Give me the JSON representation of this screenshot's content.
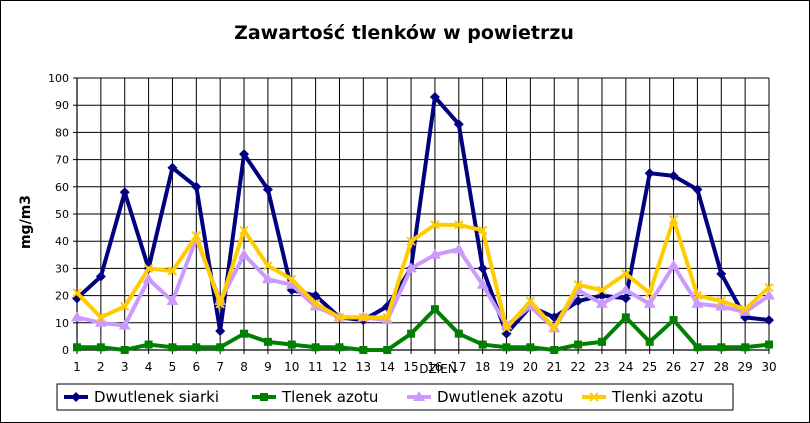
{
  "chart_data": {
    "type": "line",
    "title": "Zawartość tlenków w powietrzu",
    "xlabel": "DZIEŃ",
    "ylabel": "mg/m3",
    "ylim": [
      0,
      100
    ],
    "ytick_step": 10,
    "grid": true,
    "legend_position": "bottom",
    "categories": [
      1,
      2,
      3,
      4,
      5,
      6,
      7,
      8,
      9,
      10,
      11,
      12,
      13,
      14,
      15,
      16,
      17,
      18,
      19,
      20,
      21,
      22,
      23,
      24,
      25,
      26,
      27,
      28,
      29,
      30
    ],
    "series": [
      {
        "name": "Dwutlenek siarki",
        "color": "#000080",
        "marker": "diamond",
        "values": [
          19,
          27,
          58,
          30,
          67,
          60,
          7,
          72,
          59,
          22,
          20,
          12,
          11,
          16,
          30,
          93,
          83,
          30,
          6,
          16,
          12,
          18,
          20,
          19,
          65,
          64,
          59,
          28,
          12,
          11
        ]
      },
      {
        "name": "Tlenek azotu",
        "color": "#008000",
        "marker": "square",
        "values": [
          1,
          1,
          0,
          2,
          1,
          1,
          1,
          6,
          3,
          2,
          1,
          1,
          0,
          0,
          6,
          15,
          6,
          2,
          1,
          1,
          0,
          2,
          3,
          12,
          3,
          11,
          1,
          1,
          1,
          2
        ]
      },
      {
        "name": "Dwutlenek azotu",
        "color": "#CC99FF",
        "marker": "triangle",
        "values": [
          12,
          10,
          9,
          26,
          18,
          41,
          18,
          35,
          26,
          24,
          16,
          12,
          12,
          11,
          30,
          35,
          37,
          24,
          9,
          16,
          8,
          22,
          17,
          22,
          17,
          31,
          17,
          16,
          14,
          20
        ]
      },
      {
        "name": "Tlenki azotu",
        "color": "#FFCC00",
        "marker": "x",
        "values": [
          21,
          12,
          16,
          30,
          29,
          42,
          17,
          44,
          31,
          26,
          17,
          12,
          12,
          12,
          40,
          46,
          46,
          44,
          8,
          18,
          8,
          24,
          22,
          28,
          21,
          48,
          20,
          18,
          15,
          23
        ]
      }
    ]
  }
}
